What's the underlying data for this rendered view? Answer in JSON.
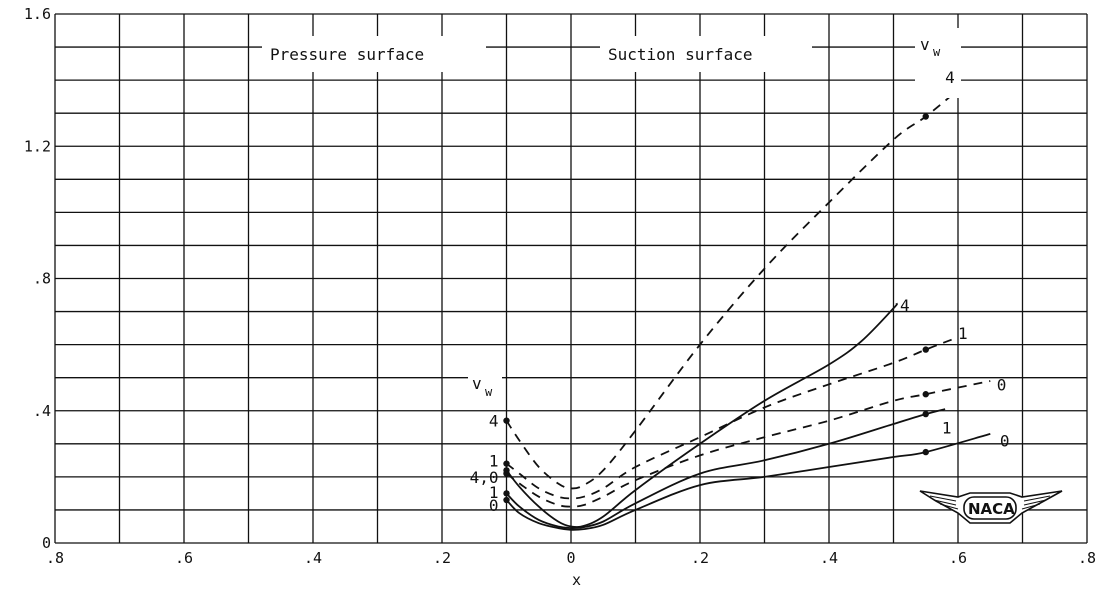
{
  "chart_data": {
    "type": "line",
    "xlabel": "x",
    "ylabel": "",
    "xlim": [
      -0.8,
      0.8
    ],
    "ylim": [
      0,
      1.6
    ],
    "grid": true,
    "x_tick_labels": [
      ".8",
      ".6",
      ".4",
      ".2",
      "0",
      ".2",
      ".4",
      ".6",
      ".8"
    ],
    "y_tick_labels": [
      "0",
      ".4",
      ".8",
      "1.2",
      "1.6"
    ],
    "annotations": {
      "pressure_surface": "Pressure surface",
      "suction_surface": "Suction surface",
      "vw_main": "v",
      "vw_main_sub": "w",
      "vw_left": "v",
      "vw_left_sub": "w",
      "label_4_0": "4,0"
    },
    "logo_text": "NACA",
    "series": [
      {
        "label": "4",
        "style": "dashed",
        "points": [
          [
            -0.1,
            0.37
          ],
          [
            -0.08,
            0.31
          ],
          [
            -0.05,
            0.23
          ],
          [
            -0.02,
            0.18
          ],
          [
            0,
            0.165
          ],
          [
            0.02,
            0.175
          ],
          [
            0.05,
            0.22
          ],
          [
            0.1,
            0.34
          ],
          [
            0.2,
            0.6
          ],
          [
            0.3,
            0.83
          ],
          [
            0.4,
            1.03
          ],
          [
            0.5,
            1.22
          ],
          [
            0.55,
            1.29
          ],
          [
            0.6,
            1.37
          ]
        ],
        "markers": [
          [
            -0.1,
            0.37
          ],
          [
            0.55,
            1.29
          ]
        ],
        "label_at": [
          0.58,
          1.41
        ]
      },
      {
        "label": "1",
        "style": "dashed",
        "points": [
          [
            -0.1,
            0.24
          ],
          [
            -0.08,
            0.21
          ],
          [
            -0.05,
            0.165
          ],
          [
            -0.02,
            0.14
          ],
          [
            0,
            0.135
          ],
          [
            0.02,
            0.14
          ],
          [
            0.05,
            0.165
          ],
          [
            0.1,
            0.23
          ],
          [
            0.2,
            0.32
          ],
          [
            0.3,
            0.41
          ],
          [
            0.4,
            0.48
          ],
          [
            0.5,
            0.545
          ],
          [
            0.55,
            0.585
          ],
          [
            0.59,
            0.615
          ]
        ],
        "markers": [
          [
            -0.1,
            0.24
          ],
          [
            0.55,
            0.585
          ]
        ],
        "label_at": [
          0.6,
          0.635
        ]
      },
      {
        "label": "0",
        "style": "dashed",
        "points": [
          [
            -0.1,
            0.21
          ],
          [
            -0.08,
            0.18
          ],
          [
            -0.05,
            0.14
          ],
          [
            -0.02,
            0.115
          ],
          [
            0,
            0.11
          ],
          [
            0.02,
            0.115
          ],
          [
            0.05,
            0.14
          ],
          [
            0.1,
            0.19
          ],
          [
            0.2,
            0.265
          ],
          [
            0.3,
            0.32
          ],
          [
            0.4,
            0.37
          ],
          [
            0.5,
            0.43
          ],
          [
            0.55,
            0.45
          ],
          [
            0.65,
            0.49
          ]
        ],
        "markers": [
          [
            -0.1,
            0.21
          ],
          [
            0.55,
            0.45
          ]
        ],
        "label_at": [
          0.66,
          0.48
        ]
      },
      {
        "label": "4",
        "style": "solid",
        "points": [
          [
            -0.1,
            0.22
          ],
          [
            -0.08,
            0.17
          ],
          [
            -0.05,
            0.11
          ],
          [
            -0.02,
            0.065
          ],
          [
            0,
            0.05
          ],
          [
            0.02,
            0.052
          ],
          [
            0.05,
            0.08
          ],
          [
            0.1,
            0.16
          ],
          [
            0.2,
            0.3
          ],
          [
            0.3,
            0.43
          ],
          [
            0.4,
            0.54
          ],
          [
            0.45,
            0.61
          ],
          [
            0.5,
            0.71
          ],
          [
            0.505,
            0.725
          ]
        ],
        "markers": [
          [
            -0.1,
            0.22
          ]
        ],
        "label_at": [
          0.51,
          0.72
        ]
      },
      {
        "label": "1",
        "style": "solid",
        "points": [
          [
            -0.1,
            0.15
          ],
          [
            -0.08,
            0.11
          ],
          [
            -0.05,
            0.07
          ],
          [
            -0.02,
            0.05
          ],
          [
            0,
            0.045
          ],
          [
            0.02,
            0.048
          ],
          [
            0.05,
            0.065
          ],
          [
            0.1,
            0.12
          ],
          [
            0.2,
            0.21
          ],
          [
            0.3,
            0.25
          ],
          [
            0.4,
            0.3
          ],
          [
            0.5,
            0.36
          ],
          [
            0.55,
            0.39
          ],
          [
            0.58,
            0.405
          ]
        ],
        "markers": [
          [
            -0.1,
            0.15
          ],
          [
            0.55,
            0.39
          ]
        ],
        "label_at": [
          0.575,
          0.35
        ]
      },
      {
        "label": "0",
        "style": "solid",
        "points": [
          [
            -0.1,
            0.13
          ],
          [
            -0.08,
            0.09
          ],
          [
            -0.05,
            0.06
          ],
          [
            -0.02,
            0.045
          ],
          [
            0,
            0.04
          ],
          [
            0.02,
            0.042
          ],
          [
            0.05,
            0.055
          ],
          [
            0.1,
            0.1
          ],
          [
            0.2,
            0.175
          ],
          [
            0.3,
            0.2
          ],
          [
            0.4,
            0.23
          ],
          [
            0.5,
            0.26
          ],
          [
            0.55,
            0.275
          ],
          [
            0.65,
            0.33
          ]
        ],
        "markers": [
          [
            -0.1,
            0.13
          ],
          [
            0.55,
            0.275
          ]
        ],
        "label_at": [
          0.665,
          0.31
        ]
      }
    ],
    "left_value_labels": [
      "4",
      "1",
      "4,0",
      "1",
      "0"
    ]
  }
}
